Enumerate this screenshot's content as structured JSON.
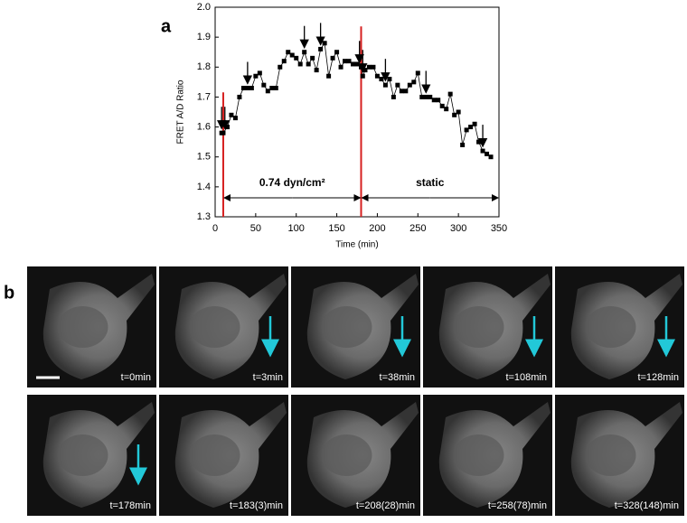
{
  "panel_a": "a",
  "panel_b": "b",
  "chart_data": {
    "type": "line",
    "x_label": "Time (min)",
    "y_label": "FRET A/D Ratio",
    "x": [
      8,
      10,
      15,
      20,
      25,
      30,
      35,
      40,
      45,
      50,
      55,
      60,
      65,
      70,
      75,
      80,
      85,
      90,
      95,
      100,
      105,
      110,
      115,
      120,
      125,
      130,
      135,
      140,
      145,
      150,
      155,
      160,
      165,
      170,
      175,
      180,
      182,
      185,
      190,
      195,
      200,
      205,
      210,
      215,
      220,
      225,
      230,
      235,
      240,
      245,
      250,
      255,
      260,
      265,
      270,
      275,
      280,
      285,
      290,
      295,
      300,
      305,
      310,
      315,
      320,
      325,
      330,
      335,
      340
    ],
    "series": [
      {
        "color": "#000000",
        "values": [
          1.58,
          1.58,
          1.6,
          1.64,
          1.63,
          1.7,
          1.73,
          1.73,
          1.73,
          1.77,
          1.78,
          1.74,
          1.72,
          1.73,
          1.73,
          1.8,
          1.82,
          1.85,
          1.84,
          1.83,
          1.81,
          1.85,
          1.81,
          1.83,
          1.79,
          1.86,
          1.88,
          1.77,
          1.83,
          1.85,
          1.8,
          1.82,
          1.82,
          1.81,
          1.81,
          1.8,
          1.77,
          1.79,
          1.8,
          1.8,
          1.77,
          1.76,
          1.74,
          1.76,
          1.7,
          1.74,
          1.72,
          1.72,
          1.74,
          1.75,
          1.78,
          1.7,
          1.7,
          1.7,
          1.69,
          1.69,
          1.67,
          1.66,
          1.71,
          1.64,
          1.65,
          1.54,
          1.59,
          1.6,
          1.61,
          1.55,
          1.52,
          1.51,
          1.5
        ]
      }
    ],
    "xlim": [
      0,
      350
    ],
    "xticks": [
      0,
      50,
      100,
      150,
      200,
      250,
      300,
      350
    ],
    "ylim": [
      1.3,
      2.0
    ],
    "yticks": [
      1.3,
      1.4,
      1.5,
      1.6,
      1.7,
      1.8,
      1.9,
      {
        "value": 2.0,
        "label": "2.0"
      }
    ],
    "arrow_x": [
      8,
      12,
      40,
      110,
      130,
      178,
      182,
      210,
      260,
      330
    ],
    "vlines": [
      10,
      180
    ],
    "vline_color": "#d62020",
    "annotations": [
      "0.74 dyn/cm²",
      "static"
    ]
  },
  "images": [
    "t=0min",
    "t=3min",
    "t=38min",
    "t=108min",
    "t=128min",
    "t=178min",
    "t=183(3)min",
    "t=208(28)min",
    "t=258(78)min",
    "t=328(148)min"
  ]
}
